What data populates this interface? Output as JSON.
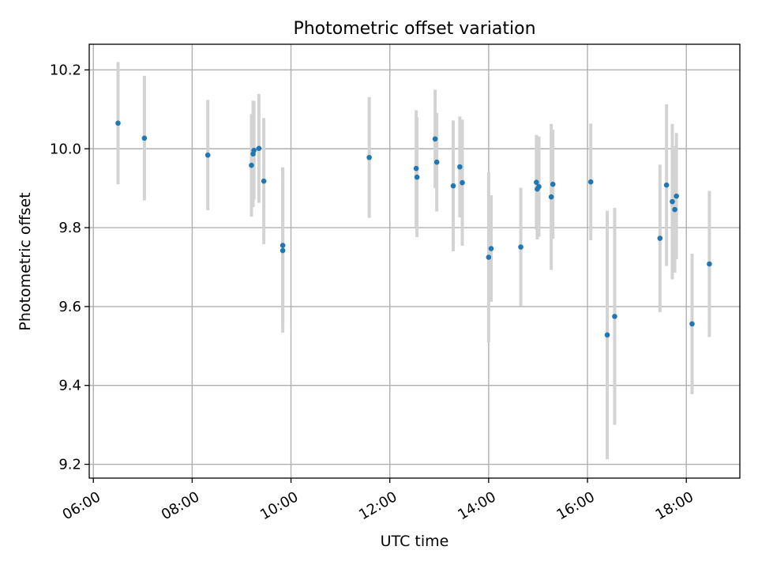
{
  "chart_data": {
    "type": "scatter",
    "title": "Photometric offset variation",
    "xlabel": "UTC time",
    "ylabel": "Photometric offset",
    "grid": true,
    "xlim": [
      "05:55",
      "19:05"
    ],
    "ylim": [
      9.165,
      10.265
    ],
    "x_ticks": [
      "06:00",
      "08:00",
      "10:00",
      "12:00",
      "14:00",
      "16:00",
      "18:00"
    ],
    "y_ticks": [
      "9.2",
      "9.4",
      "9.6",
      "9.8",
      "10.0",
      "10.2"
    ],
    "colors": {
      "points": "#1f77b4",
      "errorbars": "#d3d3d3",
      "grid": "#b0b0b0"
    },
    "points": [
      {
        "x": "06:30",
        "y": 10.065,
        "err": 0.155
      },
      {
        "x": "07:02",
        "y": 10.027,
        "err": 0.158
      },
      {
        "x": "08:19",
        "y": 9.984,
        "err": 0.14
      },
      {
        "x": "09:12",
        "y": 9.958,
        "err": 0.13
      },
      {
        "x": "09:14",
        "y": 9.987,
        "err": 0.135
      },
      {
        "x": "09:15",
        "y": 9.996,
        "err": 0.125
      },
      {
        "x": "09:21",
        "y": 10.001,
        "err": 0.138
      },
      {
        "x": "09:27",
        "y": 9.918,
        "err": 0.16
      },
      {
        "x": "09:50",
        "y": 9.755,
        "err": 0.198
      },
      {
        "x": "09:50",
        "y": 9.742,
        "err": 0.208
      },
      {
        "x": "11:35",
        "y": 9.978,
        "err": 0.153
      },
      {
        "x": "12:32",
        "y": 9.95,
        "err": 0.148
      },
      {
        "x": "12:33",
        "y": 9.928,
        "err": 0.152
      },
      {
        "x": "12:55",
        "y": 10.025,
        "err": 0.125
      },
      {
        "x": "12:57",
        "y": 9.966,
        "err": 0.125
      },
      {
        "x": "13:17",
        "y": 9.906,
        "err": 0.166
      },
      {
        "x": "13:25",
        "y": 9.954,
        "err": 0.128
      },
      {
        "x": "13:28",
        "y": 9.914,
        "err": 0.16
      },
      {
        "x": "14:00",
        "y": 9.725,
        "err": 0.216
      },
      {
        "x": "14:03",
        "y": 9.747,
        "err": 0.135
      },
      {
        "x": "14:39",
        "y": 9.751,
        "err": 0.15
      },
      {
        "x": "14:58",
        "y": 9.915,
        "err": 0.12
      },
      {
        "x": "14:59",
        "y": 9.898,
        "err": 0.128
      },
      {
        "x": "15:01",
        "y": 9.904,
        "err": 0.127
      },
      {
        "x": "15:16",
        "y": 9.878,
        "err": 0.185
      },
      {
        "x": "15:18",
        "y": 9.91,
        "err": 0.138
      },
      {
        "x": "16:04",
        "y": 9.916,
        "err": 0.148
      },
      {
        "x": "16:24",
        "y": 9.528,
        "err": 0.315
      },
      {
        "x": "16:33",
        "y": 9.575,
        "err": 0.275
      },
      {
        "x": "17:28",
        "y": 9.773,
        "err": 0.187
      },
      {
        "x": "17:36",
        "y": 9.908,
        "err": 0.205
      },
      {
        "x": "17:43",
        "y": 9.866,
        "err": 0.197
      },
      {
        "x": "17:46",
        "y": 9.846,
        "err": 0.16
      },
      {
        "x": "17:48",
        "y": 9.88,
        "err": 0.16
      },
      {
        "x": "18:07",
        "y": 9.556,
        "err": 0.178
      },
      {
        "x": "18:28",
        "y": 9.708,
        "err": 0.185
      }
    ]
  }
}
